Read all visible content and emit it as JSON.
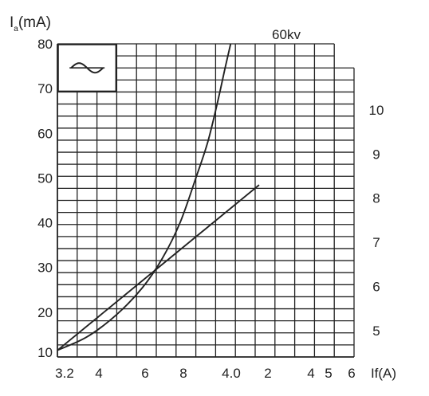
{
  "chart_data": {
    "type": "line",
    "ylabel": {
      "main": "I",
      "sub": "a",
      "unit": "(mA)"
    },
    "xlabel": "If(A)",
    "yticks_left": [
      "80",
      "70",
      "60",
      "50",
      "40",
      "30",
      "20",
      "10"
    ],
    "yticks_right": [
      "10",
      "9",
      "8",
      "7",
      "6",
      "5"
    ],
    "xticks": [
      "3.2",
      "4",
      "6",
      "8",
      "4.0",
      "2",
      "4",
      "5",
      "6"
    ],
    "ylim": [
      10,
      80
    ],
    "yright_lim": [
      4.4,
      11.5
    ],
    "grid": true,
    "series": [
      {
        "name": "60kv",
        "axis": "left",
        "points": [
          [
            0,
            11.5
          ],
          [
            1.5,
            14.5
          ],
          [
            3.0,
            19.5
          ],
          [
            4.3,
            25.5
          ],
          [
            5.3,
            32
          ],
          [
            6.2,
            40
          ],
          [
            7.0,
            50
          ],
          [
            7.6,
            58
          ],
          [
            8.1,
            67
          ],
          [
            8.5,
            75
          ],
          [
            8.76,
            80
          ]
        ]
      },
      {
        "name": "",
        "axis": "right",
        "points": [
          [
            0,
            4.55
          ],
          [
            10.2,
            8.3
          ]
        ]
      }
    ],
    "wave_symbol": "ac-sine-wave-icon"
  }
}
